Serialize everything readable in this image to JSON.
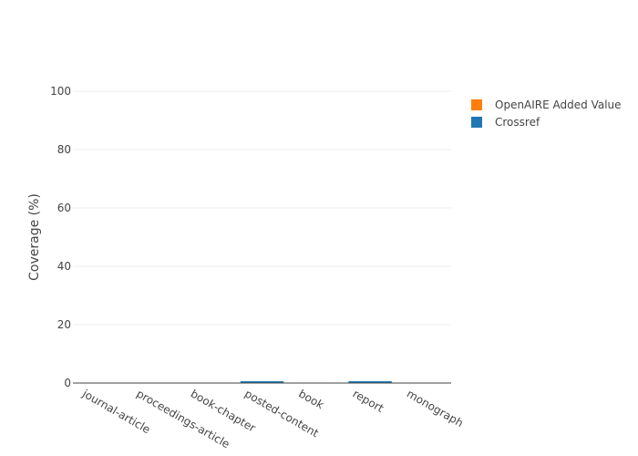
{
  "chart_data": {
    "type": "bar",
    "stacked": true,
    "categories": [
      "journal-article",
      "proceedings-article",
      "book-chapter",
      "posted-content",
      "book",
      "report",
      "monograph"
    ],
    "series": [
      {
        "name": "Crossref",
        "color": "#1f77b4",
        "values": [
          0,
          0,
          0,
          0.2,
          0,
          0.5,
          0
        ]
      },
      {
        "name": "OpenAIRE Added Value",
        "color": "#ff7f0e",
        "values": [
          0,
          0,
          0,
          0,
          0,
          0,
          0
        ]
      }
    ],
    "ylabel": "Coverage (%)",
    "ylim": [
      0,
      100
    ],
    "yticks": [
      0,
      20,
      40,
      60,
      80,
      100
    ],
    "grid": true,
    "legend_position": "top-right",
    "legend_order": [
      "OpenAIRE Added Value",
      "Crossref"
    ]
  }
}
